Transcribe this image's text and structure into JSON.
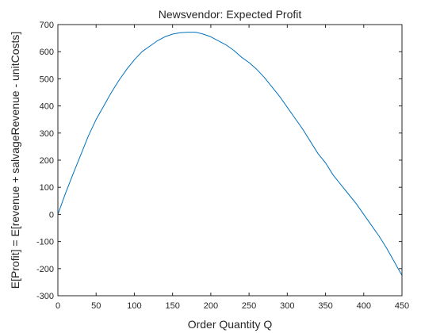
{
  "chart_data": {
    "type": "line",
    "title": "Newsvendor:  Expected Profit",
    "xlabel": "Order Quantity Q",
    "ylabel": "E[Profit] = E[revenue + salvageRevenue - unitCosts]",
    "xlim": [
      0,
      450
    ],
    "ylim": [
      -300,
      700
    ],
    "xticks": [
      0,
      50,
      100,
      150,
      200,
      250,
      300,
      350,
      400,
      450
    ],
    "yticks": [
      -300,
      -200,
      -100,
      0,
      100,
      200,
      300,
      400,
      500,
      600,
      700
    ],
    "grid": false,
    "series": [
      {
        "color": "#0072BD",
        "x": [
          0,
          10,
          20,
          30,
          40,
          50,
          60,
          70,
          80,
          90,
          100,
          110,
          120,
          130,
          140,
          150,
          160,
          170,
          180,
          190,
          200,
          210,
          220,
          230,
          240,
          250,
          260,
          270,
          280,
          290,
          300,
          310,
          320,
          330,
          340,
          350,
          360,
          370,
          380,
          390,
          400,
          410,
          420,
          430,
          440,
          450
        ],
        "y": [
          0,
          78,
          150,
          220,
          290,
          350,
          400,
          450,
          495,
          535,
          570,
          600,
          620,
          640,
          655,
          665,
          670,
          672,
          672,
          665,
          655,
          640,
          625,
          605,
          580,
          560,
          535,
          505,
          470,
          435,
          395,
          355,
          315,
          270,
          225,
          190,
          145,
          110,
          75,
          40,
          0,
          -40,
          -80,
          -125,
          -175,
          -225
        ]
      }
    ]
  }
}
